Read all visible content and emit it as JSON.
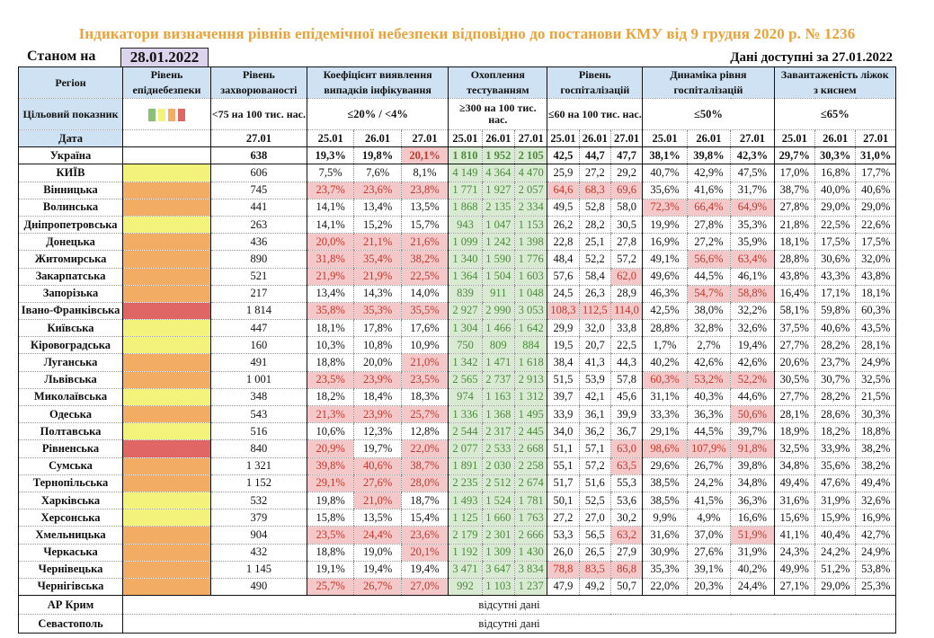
{
  "title": "Індикатори визначення рівнів епідемічної небезпеки відповідно до постанови КМУ від 9 грудня 2020 р. № 1236",
  "as_of_label": "Станом на",
  "as_of_date": "28.01.2022",
  "data_available": "Дані доступні за  27.01.2022",
  "colors": {
    "green": "#8bc177",
    "yellow": "#f3f27a",
    "orange": "#f3ac64",
    "red": "#e06565",
    "header_bg": "#cfe2f3",
    "alert_bg": "#f4c7c9",
    "test_bg": "#d9ead3",
    "title": "#e8a33a"
  },
  "headers": {
    "region": "Регіон",
    "target": "Цільовий показник",
    "date": "Дата",
    "level": "Рівень епіднебезпеки",
    "incidence": "Рівень захворюваності",
    "incidence_target": "<75 на 100 тис. нас.",
    "incidence_date": "27.01",
    "detection": "Коефіцієнт виявлення випадків інфікування",
    "detection_target": "≤20% / <4%",
    "testing": "Охоплення тестуванням",
    "testing_target": "≥300 на 100 тис. нас.",
    "hosp": "Рівень госпіталізацій",
    "hosp_target": "≤60 на 100 тис. нас.",
    "dyn": "Динаміка рівня госпіталізацій",
    "dyn_target": "≤50%",
    "beds": "Завантаженість ліжок з киснем",
    "beds_target": "≤65%",
    "dates": [
      "25.01",
      "26.01",
      "27.01"
    ]
  },
  "legend_levels": [
    "green",
    "yellow",
    "orange",
    "red"
  ],
  "ukraine": {
    "name": "Україна",
    "incidence": "638",
    "detection": [
      "19,3%",
      "19,8%",
      "20,1%"
    ],
    "detection_alert": [
      0,
      0,
      1
    ],
    "testing": [
      "1 810",
      "1 952",
      "2 105"
    ],
    "hosp": [
      "42,5",
      "44,7",
      "47,7"
    ],
    "hosp_alert": [
      0,
      0,
      0
    ],
    "dyn": [
      "38,1%",
      "39,8%",
      "42,3%"
    ],
    "dyn_alert": [
      0,
      0,
      0
    ],
    "beds": [
      "29,7%",
      "30,3%",
      "31,0%"
    ]
  },
  "regions": [
    {
      "name": "КИЇВ",
      "level": "yellow",
      "incidence": "606",
      "detection": [
        "7,5%",
        "7,6%",
        "8,1%"
      ],
      "detection_alert": [
        0,
        0,
        0
      ],
      "testing": [
        "4 149",
        "4 364",
        "4 470"
      ],
      "hosp": [
        "25,9",
        "27,2",
        "29,2"
      ],
      "hosp_alert": [
        0,
        0,
        0
      ],
      "dyn": [
        "40,7%",
        "42,9%",
        "47,5%"
      ],
      "dyn_alert": [
        0,
        0,
        0
      ],
      "beds": [
        "17,0%",
        "16,8%",
        "17,7%"
      ]
    },
    {
      "name": "Вінницька",
      "level": "orange",
      "incidence": "745",
      "detection": [
        "23,7%",
        "23,6%",
        "23,8%"
      ],
      "detection_alert": [
        1,
        1,
        1
      ],
      "testing": [
        "1 771",
        "1 927",
        "2 057"
      ],
      "hosp": [
        "64,6",
        "68,3",
        "69,6"
      ],
      "hosp_alert": [
        1,
        1,
        1
      ],
      "dyn": [
        "35,6%",
        "41,6%",
        "31,7%"
      ],
      "dyn_alert": [
        0,
        0,
        0
      ],
      "beds": [
        "38,7%",
        "40,0%",
        "40,6%"
      ]
    },
    {
      "name": "Волинська",
      "level": "orange",
      "incidence": "441",
      "detection": [
        "14,1%",
        "13,4%",
        "13,5%"
      ],
      "detection_alert": [
        0,
        0,
        0
      ],
      "testing": [
        "1 868",
        "2 135",
        "2 334"
      ],
      "hosp": [
        "49,5",
        "52,8",
        "58,0"
      ],
      "hosp_alert": [
        0,
        0,
        0
      ],
      "dyn": [
        "72,3%",
        "66,4%",
        "64,9%"
      ],
      "dyn_alert": [
        1,
        1,
        1
      ],
      "beds": [
        "27,8%",
        "29,0%",
        "29,0%"
      ]
    },
    {
      "name": "Дніпропетровська",
      "level": "yellow",
      "incidence": "263",
      "detection": [
        "14,1%",
        "15,2%",
        "15,7%"
      ],
      "detection_alert": [
        0,
        0,
        0
      ],
      "testing": [
        "943",
        "1 047",
        "1 153"
      ],
      "hosp": [
        "26,2",
        "28,2",
        "30,5"
      ],
      "hosp_alert": [
        0,
        0,
        0
      ],
      "dyn": [
        "19,9%",
        "27,8%",
        "35,3%"
      ],
      "dyn_alert": [
        0,
        0,
        0
      ],
      "beds": [
        "21,8%",
        "22,5%",
        "22,6%"
      ]
    },
    {
      "name": "Донецька",
      "level": "orange",
      "incidence": "436",
      "detection": [
        "20,0%",
        "21,1%",
        "21,6%"
      ],
      "detection_alert": [
        1,
        1,
        1
      ],
      "testing": [
        "1 099",
        "1 242",
        "1 398"
      ],
      "hosp": [
        "22,8",
        "25,1",
        "27,8"
      ],
      "hosp_alert": [
        0,
        0,
        0
      ],
      "dyn": [
        "16,9%",
        "27,2%",
        "35,9%"
      ],
      "dyn_alert": [
        0,
        0,
        0
      ],
      "beds": [
        "18,1%",
        "17,5%",
        "17,5%"
      ]
    },
    {
      "name": "Житомирська",
      "level": "orange",
      "incidence": "890",
      "detection": [
        "31,8%",
        "35,4%",
        "38,2%"
      ],
      "detection_alert": [
        1,
        1,
        1
      ],
      "testing": [
        "1 340",
        "1 590",
        "1 776"
      ],
      "hosp": [
        "48,4",
        "52,2",
        "57,2"
      ],
      "hosp_alert": [
        0,
        0,
        0
      ],
      "dyn": [
        "49,1%",
        "56,6%",
        "63,4%"
      ],
      "dyn_alert": [
        0,
        1,
        1
      ],
      "beds": [
        "28,8%",
        "30,6%",
        "32,0%"
      ]
    },
    {
      "name": "Закарпатська",
      "level": "orange",
      "incidence": "521",
      "detection": [
        "21,9%",
        "21,9%",
        "22,5%"
      ],
      "detection_alert": [
        1,
        1,
        1
      ],
      "testing": [
        "1 364",
        "1 504",
        "1 603"
      ],
      "hosp": [
        "57,6",
        "58,4",
        "62,0"
      ],
      "hosp_alert": [
        0,
        0,
        1
      ],
      "dyn": [
        "49,6%",
        "44,5%",
        "46,1%"
      ],
      "dyn_alert": [
        0,
        0,
        0
      ],
      "beds": [
        "43,8%",
        "43,3%",
        "43,8%"
      ]
    },
    {
      "name": "Запорізька",
      "level": "orange",
      "incidence": "217",
      "detection": [
        "13,4%",
        "14,3%",
        "14,0%"
      ],
      "detection_alert": [
        0,
        0,
        0
      ],
      "testing": [
        "839",
        "911",
        "1 048"
      ],
      "hosp": [
        "24,5",
        "26,3",
        "28,9"
      ],
      "hosp_alert": [
        0,
        0,
        0
      ],
      "dyn": [
        "46,3%",
        "54,7%",
        "58,8%"
      ],
      "dyn_alert": [
        0,
        1,
        1
      ],
      "beds": [
        "16,4%",
        "17,1%",
        "18,1%"
      ]
    },
    {
      "name": "Івано-Франківська",
      "level": "red",
      "incidence": "1 814",
      "detection": [
        "35,8%",
        "35,3%",
        "35,5%"
      ],
      "detection_alert": [
        1,
        1,
        1
      ],
      "testing": [
        "2 927",
        "2 990",
        "3 053"
      ],
      "hosp": [
        "108,3",
        "112,5",
        "114,0"
      ],
      "hosp_alert": [
        1,
        1,
        1
      ],
      "dyn": [
        "42,5%",
        "38,0%",
        "32,2%"
      ],
      "dyn_alert": [
        0,
        0,
        0
      ],
      "beds": [
        "58,1%",
        "59,8%",
        "60,3%"
      ]
    },
    {
      "name": "Київська",
      "level": "yellow",
      "incidence": "447",
      "detection": [
        "18,1%",
        "17,8%",
        "17,6%"
      ],
      "detection_alert": [
        0,
        0,
        0
      ],
      "testing": [
        "1 304",
        "1 466",
        "1 642"
      ],
      "hosp": [
        "29,9",
        "32,0",
        "33,8"
      ],
      "hosp_alert": [
        0,
        0,
        0
      ],
      "dyn": [
        "28,8%",
        "32,8%",
        "32,6%"
      ],
      "dyn_alert": [
        0,
        0,
        0
      ],
      "beds": [
        "37,5%",
        "40,6%",
        "43,5%"
      ]
    },
    {
      "name": "Кіровоградська",
      "level": "yellow",
      "incidence": "160",
      "detection": [
        "10,3%",
        "10,8%",
        "10,9%"
      ],
      "detection_alert": [
        0,
        0,
        0
      ],
      "testing": [
        "750",
        "809",
        "884"
      ],
      "hosp": [
        "19,5",
        "20,7",
        "22,5"
      ],
      "hosp_alert": [
        0,
        0,
        0
      ],
      "dyn": [
        "1,7%",
        "2,7%",
        "19,4%"
      ],
      "dyn_alert": [
        0,
        0,
        0
      ],
      "beds": [
        "27,7%",
        "28,2%",
        "28,1%"
      ]
    },
    {
      "name": "Луганська",
      "level": "orange",
      "incidence": "491",
      "detection": [
        "18,8%",
        "20,0%",
        "21,0%"
      ],
      "detection_alert": [
        0,
        0,
        1
      ],
      "testing": [
        "1 342",
        "1 471",
        "1 618"
      ],
      "hosp": [
        "38,4",
        "41,3",
        "44,3"
      ],
      "hosp_alert": [
        0,
        0,
        0
      ],
      "dyn": [
        "40,2%",
        "42,6%",
        "42,6%"
      ],
      "dyn_alert": [
        0,
        0,
        0
      ],
      "beds": [
        "20,6%",
        "23,7%",
        "24,9%"
      ]
    },
    {
      "name": "Львівська",
      "level": "orange",
      "incidence": "1 001",
      "detection": [
        "23,5%",
        "23,9%",
        "23,5%"
      ],
      "detection_alert": [
        1,
        1,
        1
      ],
      "testing": [
        "2 565",
        "2 737",
        "2 913"
      ],
      "hosp": [
        "51,5",
        "53,9",
        "57,8"
      ],
      "hosp_alert": [
        0,
        0,
        0
      ],
      "dyn": [
        "60,3%",
        "53,2%",
        "52,2%"
      ],
      "dyn_alert": [
        1,
        1,
        1
      ],
      "beds": [
        "30,5%",
        "30,7%",
        "32,5%"
      ]
    },
    {
      "name": "Миколаївська",
      "level": "yellow",
      "incidence": "348",
      "detection": [
        "18,2%",
        "18,4%",
        "18,3%"
      ],
      "detection_alert": [
        0,
        0,
        0
      ],
      "testing": [
        "974",
        "1 163",
        "1 312"
      ],
      "hosp": [
        "39,7",
        "42,1",
        "45,6"
      ],
      "hosp_alert": [
        0,
        0,
        0
      ],
      "dyn": [
        "31,1%",
        "40,3%",
        "44,6%"
      ],
      "dyn_alert": [
        0,
        0,
        0
      ],
      "beds": [
        "27,7%",
        "28,2%",
        "21,5%"
      ]
    },
    {
      "name": "Одеська",
      "level": "orange",
      "incidence": "543",
      "detection": [
        "21,3%",
        "23,9%",
        "25,7%"
      ],
      "detection_alert": [
        1,
        1,
        1
      ],
      "testing": [
        "1 336",
        "1 368",
        "1 495"
      ],
      "hosp": [
        "33,9",
        "36,1",
        "39,9"
      ],
      "hosp_alert": [
        0,
        0,
        0
      ],
      "dyn": [
        "33,3%",
        "36,3%",
        "50,6%"
      ],
      "dyn_alert": [
        0,
        0,
        1
      ],
      "beds": [
        "28,1%",
        "28,6%",
        "30,3%"
      ]
    },
    {
      "name": "Полтавська",
      "level": "yellow",
      "incidence": "516",
      "detection": [
        "10,6%",
        "12,3%",
        "12,8%"
      ],
      "detection_alert": [
        0,
        0,
        0
      ],
      "testing": [
        "2 544",
        "2 317",
        "2 445"
      ],
      "hosp": [
        "34,0",
        "36,2",
        "36,7"
      ],
      "hosp_alert": [
        0,
        0,
        0
      ],
      "dyn": [
        "29,1%",
        "44,5%",
        "39,7%"
      ],
      "dyn_alert": [
        0,
        0,
        0
      ],
      "beds": [
        "18,9%",
        "18,2%",
        "18,8%"
      ]
    },
    {
      "name": "Рівненська",
      "level": "red",
      "incidence": "840",
      "detection": [
        "20,9%",
        "19,7%",
        "22,0%"
      ],
      "detection_alert": [
        1,
        0,
        1
      ],
      "testing": [
        "2 077",
        "2 533",
        "2 668"
      ],
      "hosp": [
        "51,1",
        "57,1",
        "63,0"
      ],
      "hosp_alert": [
        0,
        0,
        1
      ],
      "dyn": [
        "98,6%",
        "107,9%",
        "91,8%"
      ],
      "dyn_alert": [
        1,
        1,
        1
      ],
      "beds": [
        "32,5%",
        "33,9%",
        "38,2%"
      ]
    },
    {
      "name": "Сумська",
      "level": "orange",
      "incidence": "1 321",
      "detection": [
        "39,8%",
        "40,6%",
        "38,7%"
      ],
      "detection_alert": [
        1,
        1,
        1
      ],
      "testing": [
        "1 891",
        "2 030",
        "2 258"
      ],
      "hosp": [
        "55,1",
        "57,2",
        "63,5"
      ],
      "hosp_alert": [
        0,
        0,
        1
      ],
      "dyn": [
        "29,6%",
        "26,7%",
        "39,8%"
      ],
      "dyn_alert": [
        0,
        0,
        0
      ],
      "beds": [
        "34,8%",
        "35,6%",
        "38,2%"
      ]
    },
    {
      "name": "Тернопільська",
      "level": "orange",
      "incidence": "1 152",
      "detection": [
        "29,1%",
        "27,6%",
        "28,0%"
      ],
      "detection_alert": [
        1,
        1,
        1
      ],
      "testing": [
        "2 235",
        "2 512",
        "2 674"
      ],
      "hosp": [
        "51,7",
        "51,6",
        "55,3"
      ],
      "hosp_alert": [
        0,
        0,
        0
      ],
      "dyn": [
        "38,5%",
        "24,2%",
        "34,8%"
      ],
      "dyn_alert": [
        0,
        0,
        0
      ],
      "beds": [
        "49,4%",
        "47,6%",
        "49,4%"
      ]
    },
    {
      "name": "Харківська",
      "level": "yellow",
      "incidence": "532",
      "detection": [
        "19,8%",
        "21,0%",
        "18,7%"
      ],
      "detection_alert": [
        0,
        1,
        0
      ],
      "testing": [
        "1 493",
        "1 524",
        "1 781"
      ],
      "hosp": [
        "50,1",
        "52,5",
        "53,6"
      ],
      "hosp_alert": [
        0,
        0,
        0
      ],
      "dyn": [
        "38,5%",
        "41,5%",
        "36,3%"
      ],
      "dyn_alert": [
        0,
        0,
        0
      ],
      "beds": [
        "31,6%",
        "31,9%",
        "32,6%"
      ]
    },
    {
      "name": "Херсонська",
      "level": "yellow",
      "incidence": "379",
      "detection": [
        "15,8%",
        "13,5%",
        "15,4%"
      ],
      "detection_alert": [
        0,
        0,
        0
      ],
      "testing": [
        "1 125",
        "1 660",
        "1 763"
      ],
      "hosp": [
        "27,2",
        "27,0",
        "30,2"
      ],
      "hosp_alert": [
        0,
        0,
        0
      ],
      "dyn": [
        "9,9%",
        "4,9%",
        "16,6%"
      ],
      "dyn_alert": [
        0,
        0,
        0
      ],
      "beds": [
        "15,6%",
        "15,9%",
        "16,9%"
      ]
    },
    {
      "name": "Хмельницька",
      "level": "orange",
      "incidence": "904",
      "detection": [
        "23,5%",
        "24,4%",
        "23,6%"
      ],
      "detection_alert": [
        1,
        1,
        1
      ],
      "testing": [
        "2 179",
        "2 301",
        "2 666"
      ],
      "hosp": [
        "53,3",
        "56,5",
        "63,2"
      ],
      "hosp_alert": [
        0,
        0,
        1
      ],
      "dyn": [
        "31,6%",
        "37,0%",
        "51,9%"
      ],
      "dyn_alert": [
        0,
        0,
        1
      ],
      "beds": [
        "41,1%",
        "40,4%",
        "42,7%"
      ]
    },
    {
      "name": "Черкаська",
      "level": "orange",
      "incidence": "432",
      "detection": [
        "18,8%",
        "19,0%",
        "20,1%"
      ],
      "detection_alert": [
        0,
        0,
        1
      ],
      "testing": [
        "1 192",
        "1 309",
        "1 430"
      ],
      "hosp": [
        "26,0",
        "26,5",
        "27,9"
      ],
      "hosp_alert": [
        0,
        0,
        0
      ],
      "dyn": [
        "30,9%",
        "27,6%",
        "31,9%"
      ],
      "dyn_alert": [
        0,
        0,
        0
      ],
      "beds": [
        "24,3%",
        "24,2%",
        "24,9%"
      ]
    },
    {
      "name": "Чернівецька",
      "level": "orange",
      "incidence": "1 145",
      "detection": [
        "19,1%",
        "19,4%",
        "19,4%"
      ],
      "detection_alert": [
        0,
        0,
        0
      ],
      "testing": [
        "3 471",
        "3 647",
        "3 834"
      ],
      "hosp": [
        "78,8",
        "83,5",
        "86,8"
      ],
      "hosp_alert": [
        1,
        1,
        1
      ],
      "dyn": [
        "35,3%",
        "39,1%",
        "40,2%"
      ],
      "dyn_alert": [
        0,
        0,
        0
      ],
      "beds": [
        "49,9%",
        "51,2%",
        "53,8%"
      ]
    },
    {
      "name": "Чернігівська",
      "level": "orange",
      "incidence": "490",
      "detection": [
        "25,7%",
        "26,7%",
        "27,0%"
      ],
      "detection_alert": [
        1,
        1,
        1
      ],
      "testing": [
        "992",
        "1 103",
        "1 237"
      ],
      "hosp": [
        "47,9",
        "49,2",
        "50,7"
      ],
      "hosp_alert": [
        0,
        0,
        0
      ],
      "dyn": [
        "22,0%",
        "20,3%",
        "24,4%"
      ],
      "dyn_alert": [
        0,
        0,
        0
      ],
      "beds": [
        "27,1%",
        "29,0%",
        "25,3%"
      ]
    }
  ],
  "missing_regions": [
    {
      "name": "АР Крим",
      "note": "відсутні дані"
    },
    {
      "name": "Севастополь",
      "note": "відсутні дані"
    }
  ]
}
